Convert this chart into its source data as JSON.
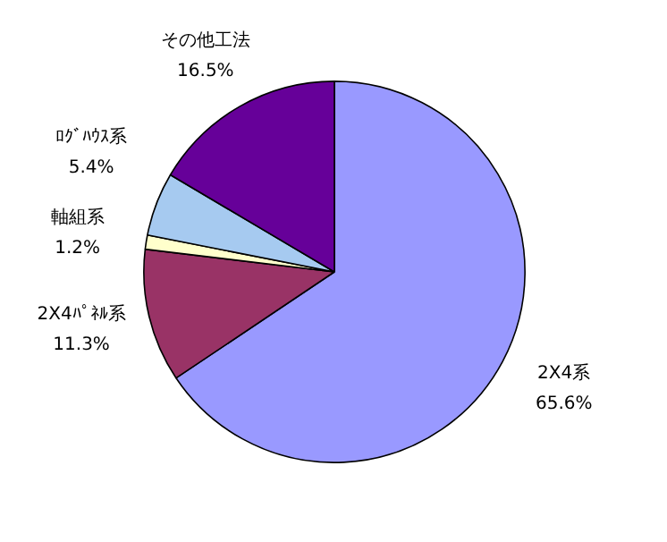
{
  "chart_data": {
    "type": "pie",
    "categories": [
      "2X4系",
      "2X4ﾊﾟﾈﾙ系",
      "軸組系",
      "ﾛｸﾞﾊｳｽ系",
      "その他工法"
    ],
    "values": [
      65.6,
      11.3,
      1.2,
      5.4,
      16.5
    ],
    "value_labels": [
      "65.6%",
      "11.3%",
      "1.2%",
      "5.4%",
      "16.5%"
    ],
    "colors": [
      "#9999ff",
      "#993366",
      "#ffffcc",
      "#a6caf0",
      "#660099"
    ]
  }
}
